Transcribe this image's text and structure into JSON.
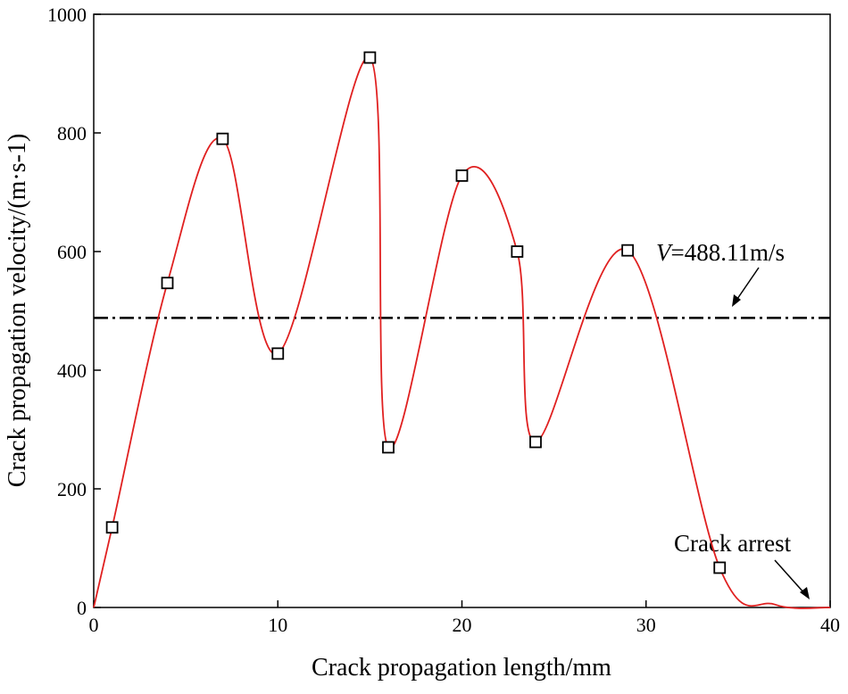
{
  "chart_data": {
    "type": "line",
    "x_label": "Crack propagation length/mm",
    "y_label": "Crack propagation velocity/(m·s-1)",
    "xlim": [
      0,
      40
    ],
    "xticks": [
      0,
      10,
      20,
      30,
      40
    ],
    "ylim": [
      0,
      1000
    ],
    "yticks": [
      0,
      200,
      400,
      600,
      800,
      1000
    ],
    "series": [
      {
        "style": "curve",
        "color": "#e02020",
        "x": [
          0,
          1,
          4,
          7,
          10,
          15,
          16,
          20,
          23,
          24,
          29,
          34,
          37,
          40
        ],
        "values": [
          0,
          135,
          547,
          790,
          428,
          927,
          270,
          728,
          600,
          279,
          602,
          67,
          5,
          0
        ]
      },
      {
        "style": "square-markers",
        "color": "#000000",
        "x": [
          1,
          4,
          7,
          10,
          15,
          16,
          20,
          23,
          24,
          29,
          34
        ],
        "values": [
          135,
          547,
          790,
          428,
          927,
          270,
          728,
          600,
          279,
          602,
          67
        ]
      }
    ],
    "reference_line": {
      "value": 488.11,
      "color": "#000000",
      "label_var": "V",
      "label_rest": "=488.11m/s"
    },
    "annotation": "Crack arrest"
  }
}
